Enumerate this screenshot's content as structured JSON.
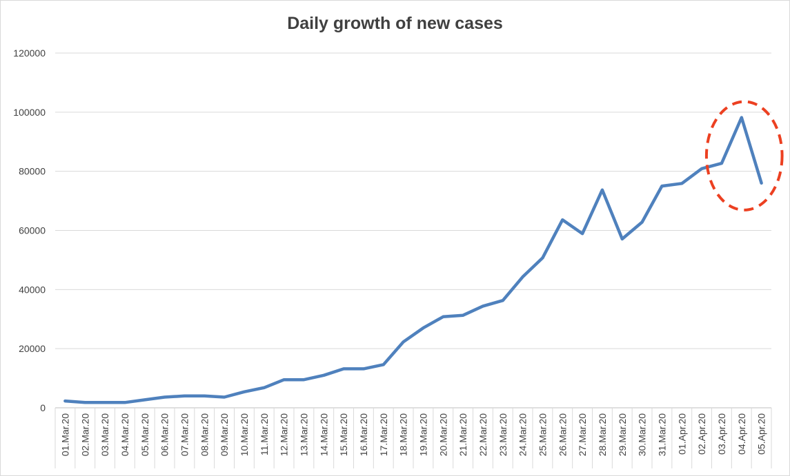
{
  "chart_data": {
    "type": "line",
    "title": "Daily growth of new cases",
    "xlabel": "",
    "ylabel": "",
    "ylim": [
      0,
      120000
    ],
    "yticks": [
      "0",
      "20000",
      "40000",
      "60000",
      "80000",
      "100000",
      "120000"
    ],
    "grid": "horizontal",
    "legend": "none",
    "categories": [
      "01.Mar.20",
      "02.Mar.20",
      "03.Mar.20",
      "04.Mar.20",
      "05.Mar.20",
      "06.Mar.20",
      "07.Mar.20",
      "08.Mar.20",
      "09.Mar.20",
      "10.Mar.20",
      "11.Mar.20",
      "12.Mar.20",
      "13.Mar.20",
      "14.Mar.20",
      "15.Mar.20",
      "16.Mar.20",
      "17.Mar.20",
      "18.Mar.20",
      "19.Mar.20",
      "20.Mar.20",
      "21.Mar.20",
      "22.Mar.20",
      "23.Mar.20",
      "24.Mar.20",
      "25.Mar.20",
      "26.Mar.20",
      "27.Mar.20",
      "28.Mar.20",
      "29.Mar.20",
      "30.Mar.20",
      "31.Mar.20",
      "01.Apr.20",
      "02.Apr.20",
      "03.Apr.20",
      "04.Apr.20",
      "05.Apr.20"
    ],
    "series": [
      {
        "values": [
          2300,
          1800,
          1800,
          1800,
          2700,
          3600,
          4000,
          4000,
          3600,
          5400,
          6800,
          9500,
          9500,
          11000,
          13200,
          13200,
          14600,
          22300,
          27000,
          30800,
          31300,
          34400,
          36300,
          44300,
          50700,
          63600,
          58900,
          73700,
          57100,
          62800,
          75000,
          75900,
          80900,
          82700,
          98200,
          76000
        ],
        "color": "#4f81bd"
      }
    ],
    "annotation": {
      "type": "dashed-circle",
      "color": "#ec4021",
      "around": [
        "03.Apr.20",
        "04.Apr.20",
        "05.Apr.20"
      ]
    }
  }
}
